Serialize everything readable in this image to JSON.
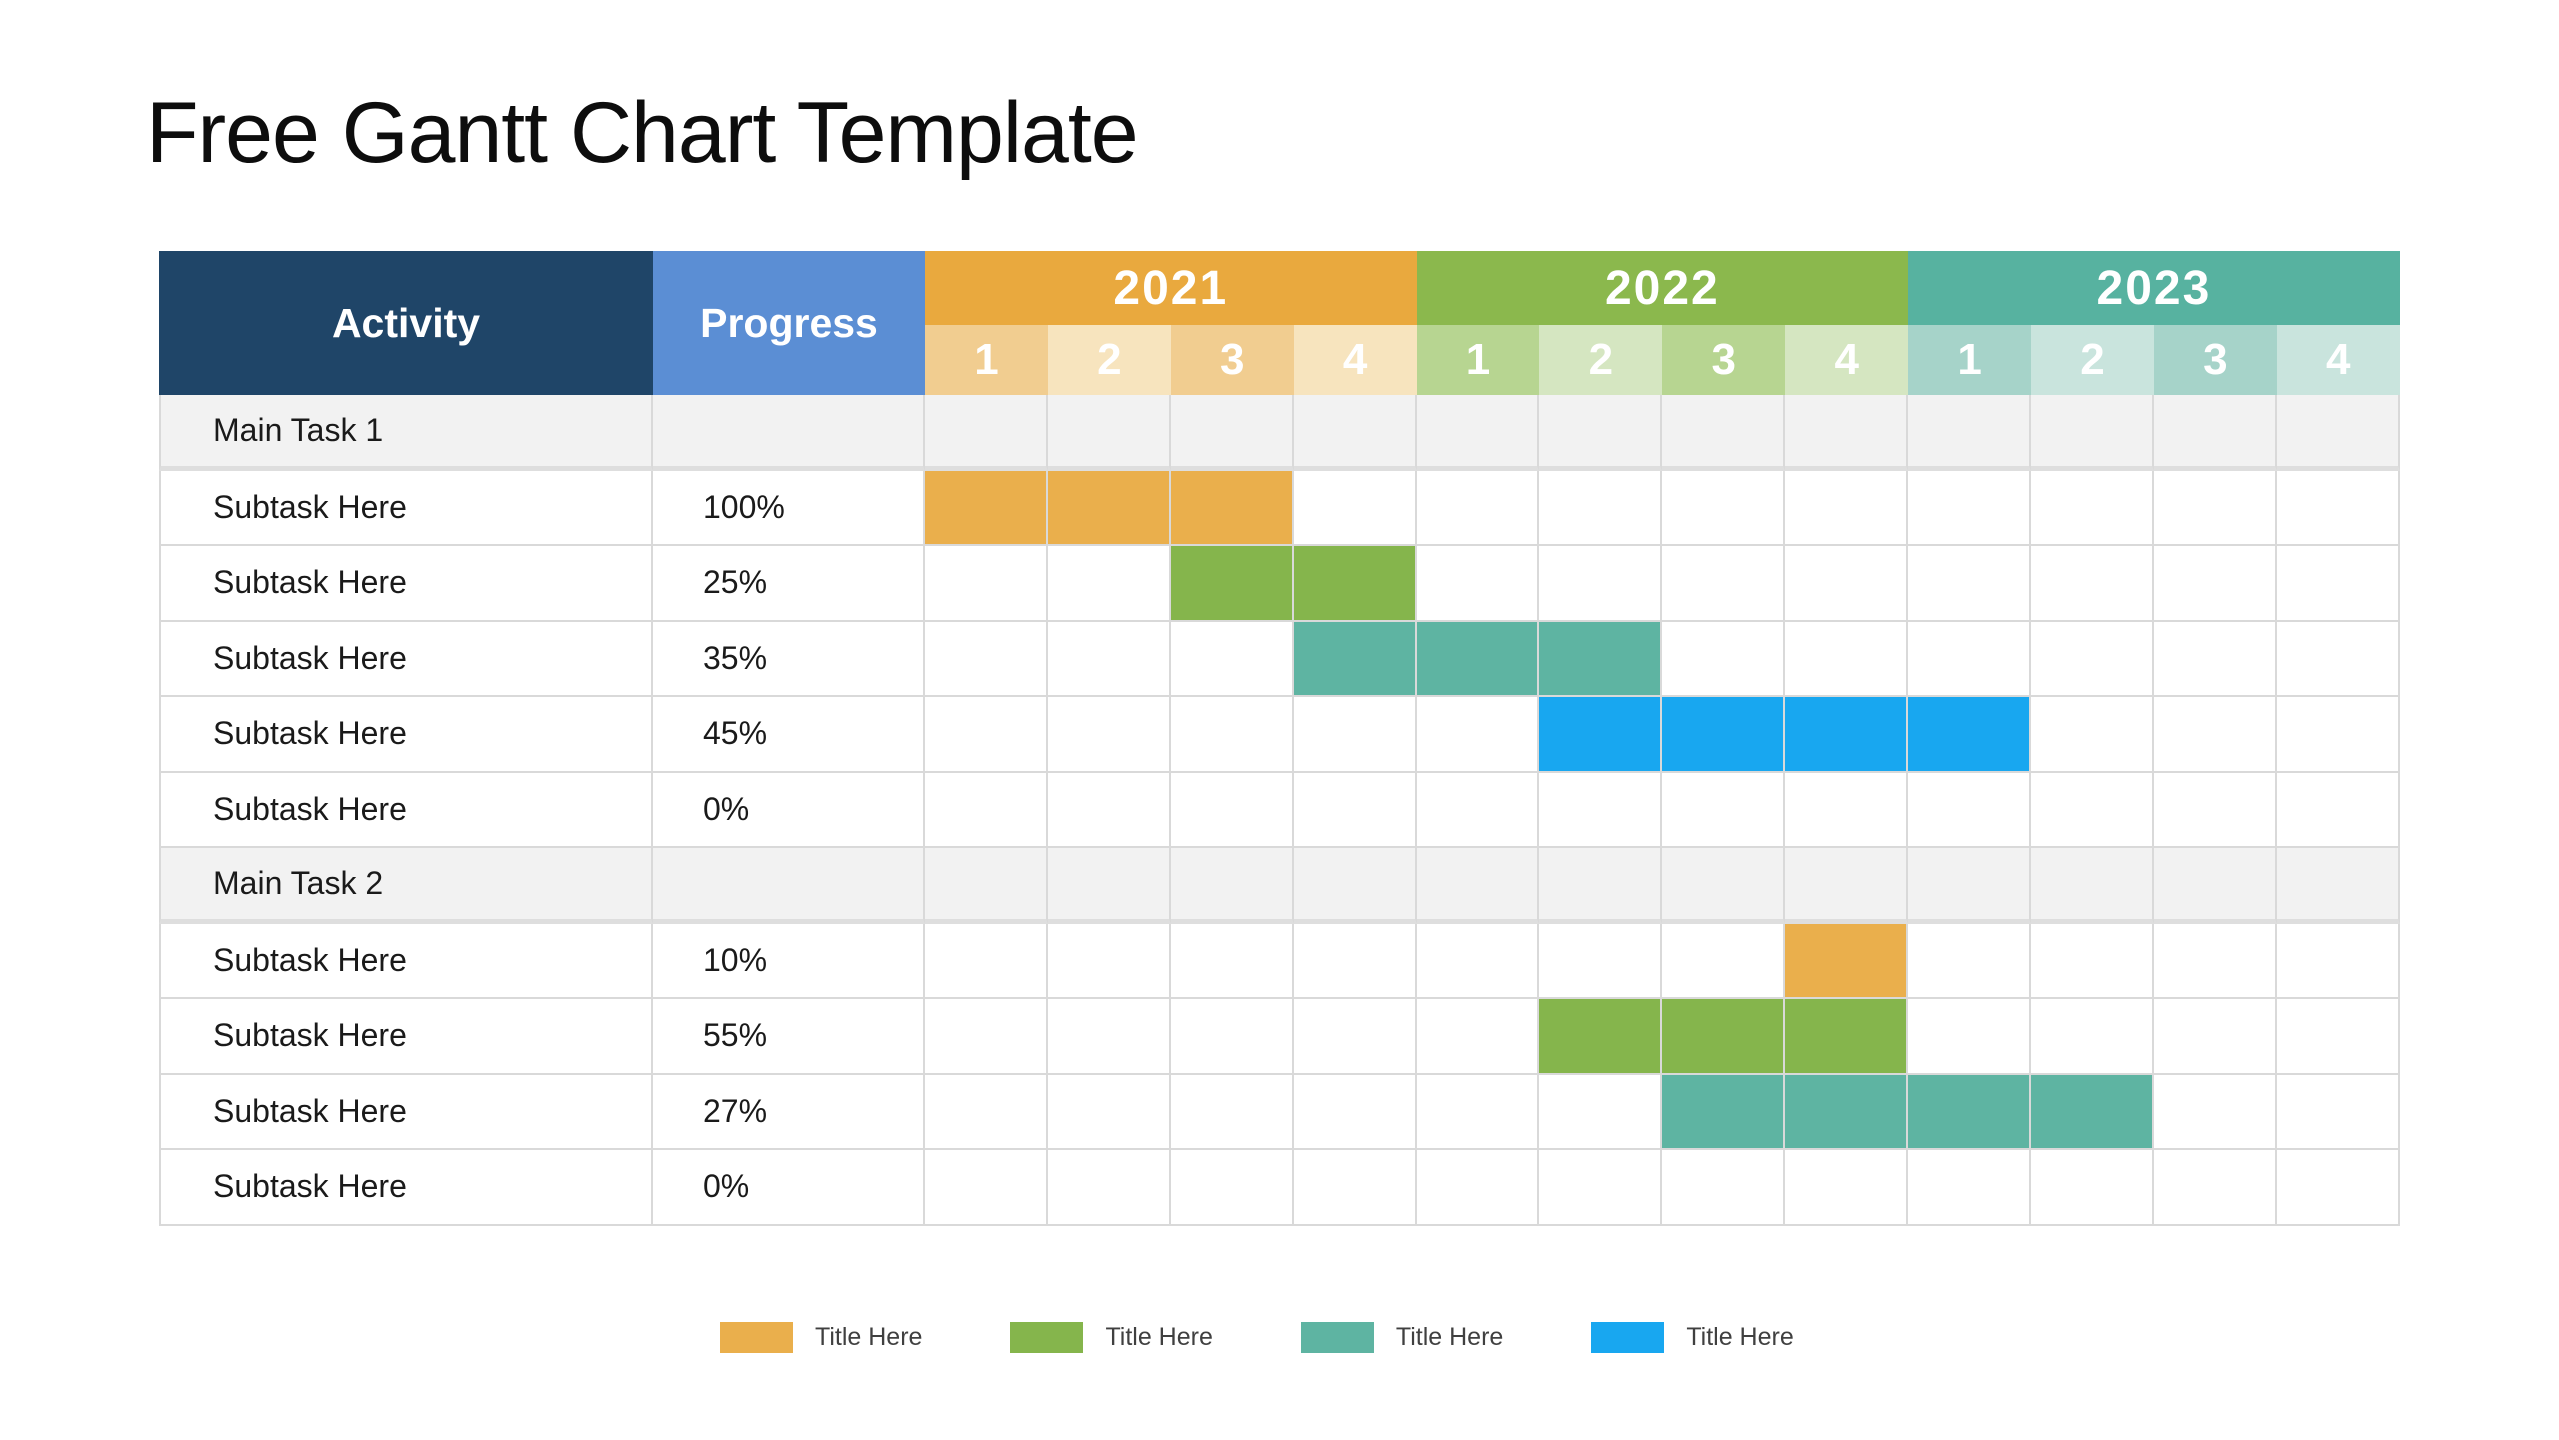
{
  "page": {
    "title": "Free Gantt Chart Template"
  },
  "colors": {
    "header_activity_bg": "#1F4568",
    "header_progress_bg": "#5B8ED4",
    "grid_line": "#D9D9D9",
    "group_row_bg": "#F2F2F2",
    "bar_orange": "#EAAF4C",
    "bar_green": "#85B54C",
    "bar_teal": "#5EB4A2",
    "bar_blue": "#18A7F0",
    "text_dark": "#1A1A1A",
    "legend_text": "#404040"
  },
  "table": {
    "activity_header": "Activity",
    "progress_header": "Progress",
    "quarter_labels": [
      "1",
      "2",
      "3",
      "4"
    ],
    "years": [
      {
        "label": "2021",
        "color": "#E9A93E",
        "quarter_tint_odd": "#F1CD90",
        "quarter_tint_even": "#F7E4BE"
      },
      {
        "label": "2022",
        "color": "#8BB84D",
        "quarter_tint_odd": "#B7D591",
        "quarter_tint_even": "#D5E6C1"
      },
      {
        "label": "2023",
        "color": "#57B2A0",
        "quarter_tint_odd": "#A6D3C9",
        "quarter_tint_even": "#C9E4DD"
      }
    ],
    "rows": [
      {
        "type": "group",
        "activity": "Main Task 1",
        "progress": ""
      },
      {
        "type": "task",
        "activity": "Subtask Here",
        "progress": "100%",
        "bar": {
          "start": 0,
          "len": 3,
          "color": "bar_orange"
        }
      },
      {
        "type": "task",
        "activity": "Subtask Here",
        "progress": "25%",
        "bar": {
          "start": 2,
          "len": 2,
          "color": "bar_green"
        }
      },
      {
        "type": "task",
        "activity": "Subtask Here",
        "progress": "35%",
        "bar": {
          "start": 3,
          "len": 3,
          "color": "bar_teal"
        }
      },
      {
        "type": "task",
        "activity": "Subtask Here",
        "progress": "45%",
        "bar": {
          "start": 5,
          "len": 4,
          "color": "bar_blue"
        }
      },
      {
        "type": "task",
        "activity": "Subtask Here",
        "progress": "0%",
        "bar": null
      },
      {
        "type": "group",
        "activity": "Main Task 2",
        "progress": ""
      },
      {
        "type": "task",
        "activity": "Subtask Here",
        "progress": "10%",
        "bar": {
          "start": 7,
          "len": 1,
          "color": "bar_orange"
        }
      },
      {
        "type": "task",
        "activity": "Subtask Here",
        "progress": "55%",
        "bar": {
          "start": 5,
          "len": 3,
          "color": "bar_green"
        }
      },
      {
        "type": "task",
        "activity": "Subtask Here",
        "progress": "27%",
        "bar": {
          "start": 6,
          "len": 4,
          "color": "bar_teal"
        }
      },
      {
        "type": "task",
        "activity": "Subtask Here",
        "progress": "0%",
        "bar": null
      }
    ]
  },
  "legend": [
    {
      "label": "Title Here",
      "color": "bar_orange"
    },
    {
      "label": "Title Here",
      "color": "bar_green"
    },
    {
      "label": "Title Here",
      "color": "bar_teal"
    },
    {
      "label": "Title Here",
      "color": "bar_blue"
    }
  ],
  "chart_data": {
    "type": "bar",
    "variant": "gantt",
    "title": "Free Gantt Chart Template",
    "columns": [
      "Activity",
      "Progress",
      "2021",
      "2022",
      "2023"
    ],
    "x_axis": {
      "years": [
        "2021",
        "2022",
        "2023"
      ],
      "quarters_per_year": [
        "1",
        "2",
        "3",
        "4"
      ],
      "timeline_quarters": [
        "2021 Q1",
        "2021 Q2",
        "2021 Q3",
        "2021 Q4",
        "2022 Q1",
        "2022 Q2",
        "2022 Q3",
        "2022 Q4",
        "2023 Q1",
        "2023 Q2",
        "2023 Q3",
        "2023 Q4"
      ]
    },
    "tasks": [
      {
        "activity": "Main Task 1",
        "group": true,
        "progress_pct": null,
        "bar": null
      },
      {
        "activity": "Subtask Here",
        "group": false,
        "progress_pct": 100,
        "bar": {
          "start": "2021 Q1",
          "end": "2021 Q3",
          "quarters": 3,
          "color": "#EAAF4C"
        }
      },
      {
        "activity": "Subtask Here",
        "group": false,
        "progress_pct": 25,
        "bar": {
          "start": "2021 Q3",
          "end": "2021 Q4",
          "quarters": 2,
          "color": "#85B54C"
        }
      },
      {
        "activity": "Subtask Here",
        "group": false,
        "progress_pct": 35,
        "bar": {
          "start": "2021 Q4",
          "end": "2022 Q2",
          "quarters": 3,
          "color": "#5EB4A2"
        }
      },
      {
        "activity": "Subtask Here",
        "group": false,
        "progress_pct": 45,
        "bar": {
          "start": "2022 Q2",
          "end": "2023 Q1",
          "quarters": 4,
          "color": "#18A7F0"
        }
      },
      {
        "activity": "Subtask Here",
        "group": false,
        "progress_pct": 0,
        "bar": null
      },
      {
        "activity": "Main Task 2",
        "group": true,
        "progress_pct": null,
        "bar": null
      },
      {
        "activity": "Subtask Here",
        "group": false,
        "progress_pct": 10,
        "bar": {
          "start": "2022 Q4",
          "end": "2022 Q4",
          "quarters": 1,
          "color": "#EAAF4C"
        }
      },
      {
        "activity": "Subtask Here",
        "group": false,
        "progress_pct": 55,
        "bar": {
          "start": "2022 Q2",
          "end": "2022 Q4",
          "quarters": 3,
          "color": "#85B54C"
        }
      },
      {
        "activity": "Subtask Here",
        "group": false,
        "progress_pct": 27,
        "bar": {
          "start": "2022 Q3",
          "end": "2023 Q2",
          "quarters": 4,
          "color": "#5EB4A2"
        }
      },
      {
        "activity": "Subtask Here",
        "group": false,
        "progress_pct": 0,
        "bar": null
      }
    ],
    "legend": [
      {
        "label": "Title Here",
        "color": "#EAAF4C"
      },
      {
        "label": "Title Here",
        "color": "#85B54C"
      },
      {
        "label": "Title Here",
        "color": "#5EB4A2"
      },
      {
        "label": "Title Here",
        "color": "#18A7F0"
      }
    ],
    "legend_position": "bottom",
    "grid": true
  }
}
